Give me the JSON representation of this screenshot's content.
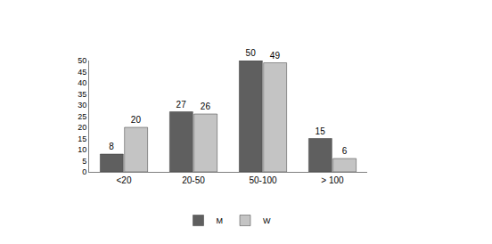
{
  "chart_data": {
    "type": "bar",
    "categories": [
      "<20",
      "20-50",
      "50-100",
      "> 100"
    ],
    "series": [
      {
        "name": "M",
        "color": "#5f5f5f",
        "values": [
          8,
          27,
          50,
          15
        ]
      },
      {
        "name": "W",
        "color": "#c4c4c4",
        "values": [
          20,
          26,
          49,
          6
        ]
      }
    ],
    "ylim": [
      0,
      50
    ],
    "yticks": [
      0,
      5,
      10,
      15,
      20,
      25,
      30,
      35,
      40,
      45,
      50
    ],
    "grid": false,
    "data_labels": true,
    "legend": "bottom"
  }
}
